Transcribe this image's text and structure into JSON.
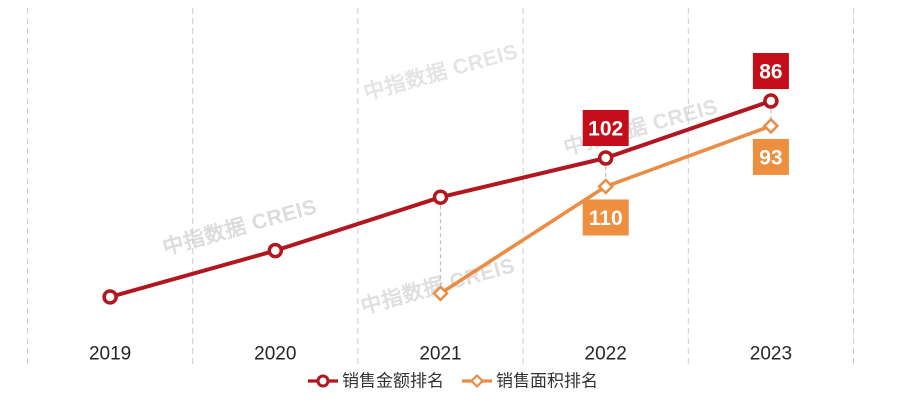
{
  "watermark": {
    "text": "中指数据 CREIS",
    "color": "#dbdbdb"
  },
  "chart_data": {
    "type": "line",
    "title": "",
    "categories": [
      "2019",
      "2020",
      "2021",
      "2022",
      "2023"
    ],
    "x_axis": {
      "label_color": "#262626",
      "label_font_px": 19
    },
    "y_axis": {
      "visible": false,
      "inverted": true,
      "meaning": "ranking (lower number = higher position)"
    },
    "grid": {
      "vertical_dashed": true,
      "color": "#cdcdcd"
    },
    "connector": {
      "color": "#bfbfbf",
      "style": "dashed"
    },
    "series": [
      {
        "name": "销售金额排名",
        "color": "#b2161f",
        "label_bg": "#c30d19",
        "marker": "circle",
        "values": [
          141,
          128,
          113,
          102,
          86
        ],
        "labels": [
          null,
          null,
          null,
          "102",
          "86"
        ],
        "note": "2019-2021 values estimated from plot; only 2022/2023 labeled"
      },
      {
        "name": "销售面积排名",
        "color": "#ea8c43",
        "label_bg": "#ed8f3f",
        "marker": "diamond",
        "values": [
          null,
          null,
          140,
          110,
          93
        ],
        "labels": [
          null,
          null,
          null,
          "110",
          "93"
        ],
        "note": "2021 value estimated from plot; only 2022/2023 labeled"
      }
    ],
    "legend": {
      "position": "bottom",
      "items": [
        "销售金额排名",
        "销售面积排名"
      ],
      "text_color": "#333333"
    }
  }
}
